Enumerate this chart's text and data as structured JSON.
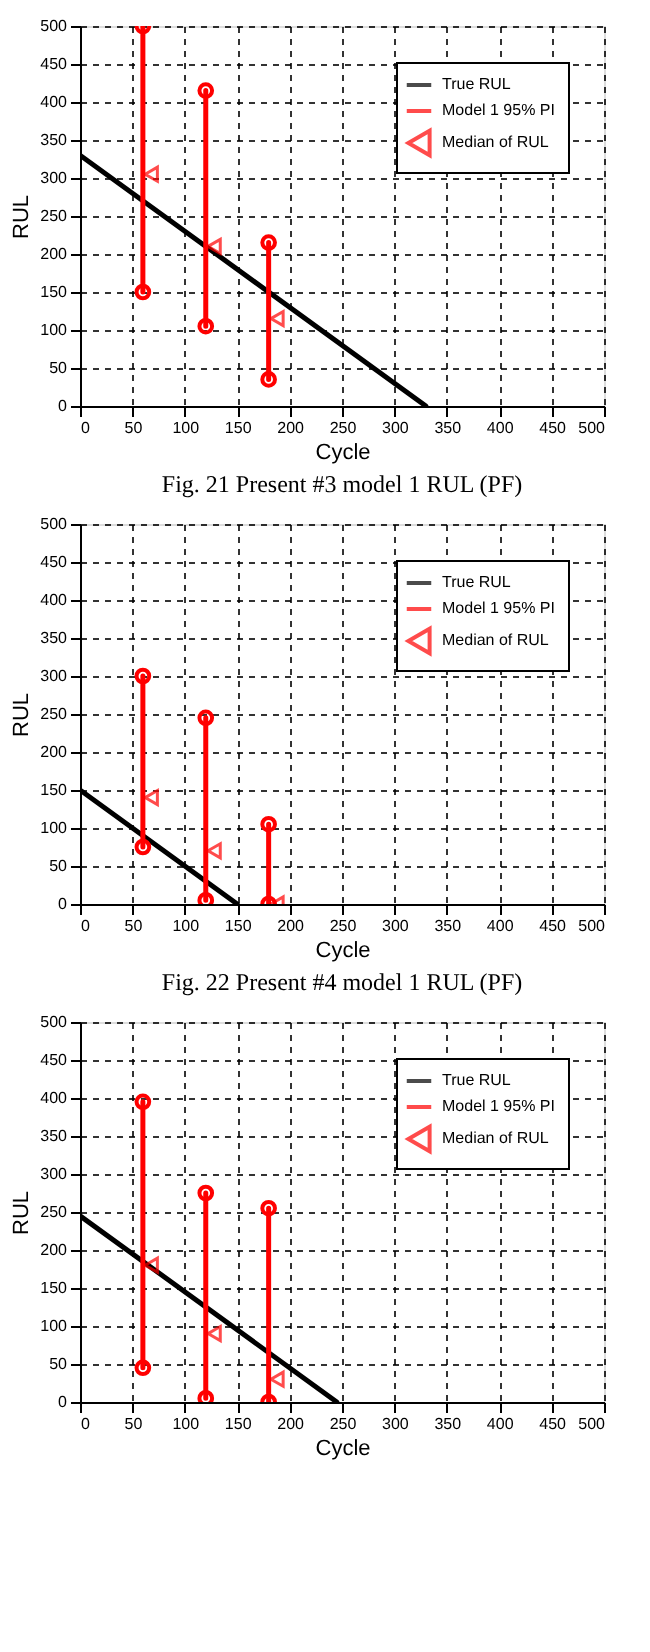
{
  "chart_data": [
    {
      "type": "line",
      "title": "Fig. 21 Present #3 model 1 RUL (PF)",
      "xlabel": "Cycle",
      "ylabel": "RUL",
      "xlim": [
        0,
        500
      ],
      "ylim": [
        0,
        500
      ],
      "xticks": [
        0,
        50,
        100,
        150,
        200,
        250,
        300,
        350,
        400,
        450,
        500
      ],
      "yticks": [
        0,
        50,
        100,
        150,
        200,
        250,
        300,
        350,
        400,
        450,
        500
      ],
      "grid": true,
      "legend": "top right",
      "series": [
        {
          "name": "True RUL",
          "color": "#000000",
          "marker": "none",
          "x": [
            0,
            330
          ],
          "values": [
            330,
            0
          ]
        },
        {
          "name": "Model 1  95% PI",
          "type": "line",
          "color": "#ff0000",
          "marker": "circle",
          "x": [
            60,
            60,
            90,
            120,
            120,
            150,
            180,
            180
          ],
          "values": [
            150,
            500,
            null,
            105,
            415,
            null,
            35,
            215
          ]
        },
        {
          "name": "Median of RUL",
          "type": "scatter",
          "color": "#ff0000",
          "marker": "triangle",
          "x": [
            68,
            128,
            188
          ],
          "values": [
            305,
            210,
            115
          ]
        }
      ]
    },
    {
      "type": "line",
      "title": "Fig. 22 Present #4 model 1 RUL (PF)",
      "xlabel": "Cycle",
      "ylabel": "RUL",
      "xlim": [
        0,
        500
      ],
      "ylim": [
        0,
        500
      ],
      "xticks": [
        0,
        50,
        100,
        150,
        200,
        250,
        300,
        350,
        400,
        450,
        500
      ],
      "yticks": [
        0,
        50,
        100,
        150,
        200,
        250,
        300,
        350,
        400,
        450,
        500
      ],
      "grid": true,
      "legend": "top right",
      "series": [
        {
          "name": "True RUL",
          "color": "#000000",
          "marker": "none",
          "x": [
            0,
            150
          ],
          "values": [
            150,
            0
          ]
        },
        {
          "name": "Model 1  95% PI",
          "type": "line",
          "color": "#ff0000",
          "marker": "circle",
          "x": [
            60,
            60,
            90,
            120,
            120,
            150,
            180,
            180
          ],
          "values": [
            75,
            300,
            null,
            5,
            245,
            null,
            0,
            105
          ]
        },
        {
          "name": "Median of RUL",
          "type": "scatter",
          "color": "#ff0000",
          "marker": "triangle",
          "x": [
            68,
            128,
            188
          ],
          "values": [
            140,
            70,
            0
          ]
        }
      ]
    },
    {
      "type": "line",
      "xlabel": "Cycle",
      "ylabel": "RUL",
      "xlim": [
        0,
        500
      ],
      "ylim": [
        0,
        500
      ],
      "xticks": [
        0,
        50,
        100,
        150,
        200,
        250,
        300,
        350,
        400,
        450,
        500
      ],
      "yticks": [
        0,
        50,
        100,
        150,
        200,
        250,
        300,
        350,
        400,
        450,
        500
      ],
      "grid": true,
      "legend": "top right",
      "series": [
        {
          "name": "True RUL",
          "color": "#000000",
          "marker": "none",
          "x": [
            0,
            245
          ],
          "values": [
            245,
            0
          ]
        },
        {
          "name": "Model 1  95% PI",
          "type": "line",
          "color": "#ff0000",
          "marker": "circle",
          "x": [
            60,
            60,
            90,
            120,
            120,
            150,
            180,
            180
          ],
          "values": [
            45,
            395,
            null,
            5,
            275,
            null,
            0,
            255
          ]
        },
        {
          "name": "Median of RUL",
          "type": "scatter",
          "color": "#ff0000",
          "marker": "triangle",
          "x": [
            68,
            128,
            188
          ],
          "values": [
            180,
            90,
            30
          ]
        }
      ]
    }
  ]
}
